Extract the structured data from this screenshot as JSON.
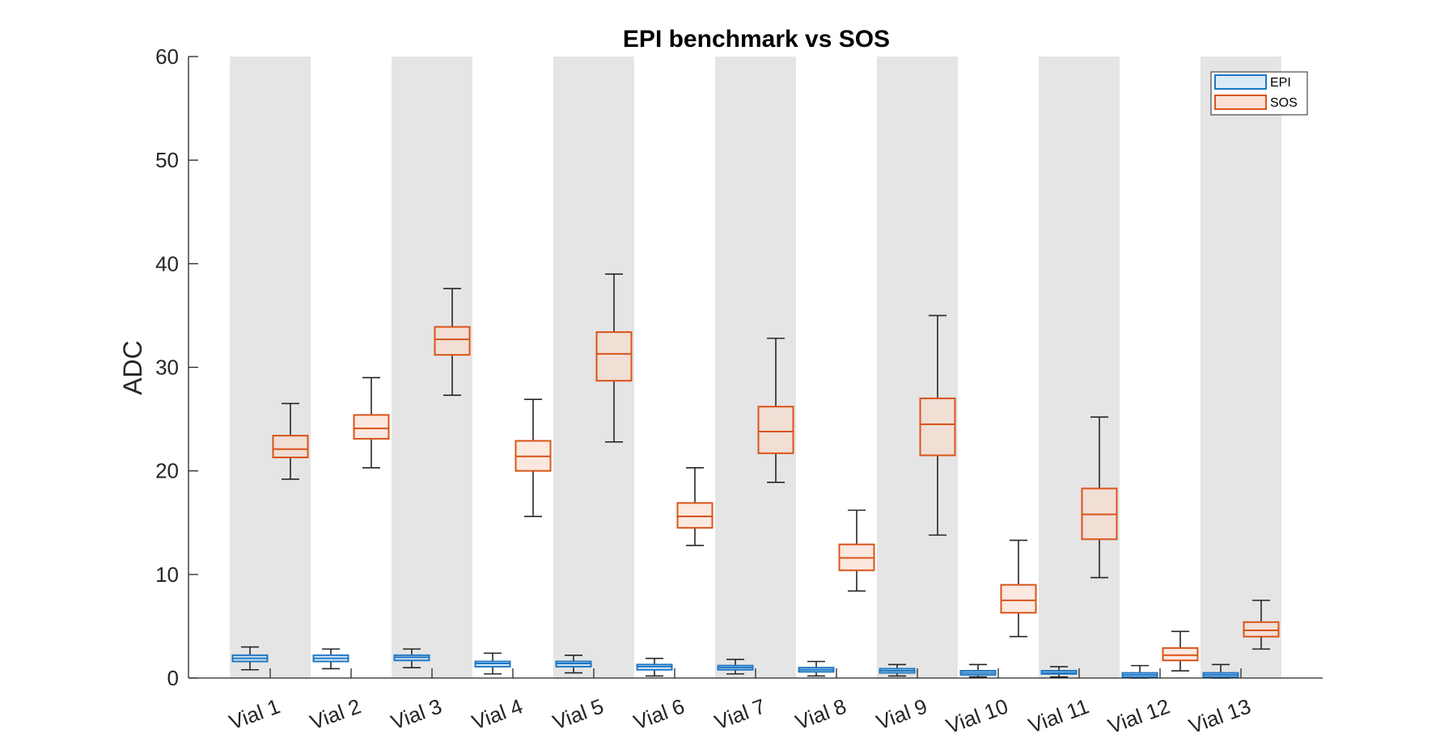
{
  "chart_data": {
    "type": "box",
    "title": "EPI benchmark vs SOS",
    "xlabel": "",
    "ylabel": "ADC",
    "ylim": [
      0,
      60
    ],
    "yticks": [
      0,
      10,
      20,
      30,
      40,
      50,
      60
    ],
    "grid": false,
    "legend_position": "top-right",
    "categories": [
      "Vial 1",
      "Vial 2",
      "Vial 3",
      "Vial 4",
      "Vial 5",
      "Vial 6",
      "Vial 7",
      "Vial 8",
      "Vial 9",
      "Vial 10",
      "Vial 11",
      "Vial 12",
      "Vial 13"
    ],
    "shaded_categories": [
      "Vial 1",
      "Vial 3",
      "Vial 5",
      "Vial 7",
      "Vial 9",
      "Vial 11",
      "Vial 13"
    ],
    "series": [
      {
        "name": "EPI",
        "color": "#1f77c4",
        "fill": "#cfe6f7",
        "boxes": [
          {
            "whisker_low": 0.8,
            "q1": 1.6,
            "median": 1.9,
            "q3": 2.2,
            "whisker_high": 3.0
          },
          {
            "whisker_low": 0.9,
            "q1": 1.6,
            "median": 1.9,
            "q3": 2.2,
            "whisker_high": 2.8
          },
          {
            "whisker_low": 1.0,
            "q1": 1.7,
            "median": 2.0,
            "q3": 2.2,
            "whisker_high": 2.8
          },
          {
            "whisker_low": 0.4,
            "q1": 1.1,
            "median": 1.4,
            "q3": 1.6,
            "whisker_high": 2.4
          },
          {
            "whisker_low": 0.5,
            "q1": 1.1,
            "median": 1.4,
            "q3": 1.6,
            "whisker_high": 2.2
          },
          {
            "whisker_low": 0.2,
            "q1": 0.8,
            "median": 1.1,
            "q3": 1.3,
            "whisker_high": 1.9
          },
          {
            "whisker_low": 0.4,
            "q1": 0.8,
            "median": 1.0,
            "q3": 1.2,
            "whisker_high": 1.8
          },
          {
            "whisker_low": 0.2,
            "q1": 0.6,
            "median": 0.8,
            "q3": 1.0,
            "whisker_high": 1.6
          },
          {
            "whisker_low": 0.2,
            "q1": 0.5,
            "median": 0.7,
            "q3": 0.9,
            "whisker_high": 1.3
          },
          {
            "whisker_low": 0.1,
            "q1": 0.3,
            "median": 0.5,
            "q3": 0.7,
            "whisker_high": 1.3
          },
          {
            "whisker_low": 0.1,
            "q1": 0.4,
            "median": 0.5,
            "q3": 0.7,
            "whisker_high": 1.1
          },
          {
            "whisker_low": 0.0,
            "q1": 0.1,
            "median": 0.3,
            "q3": 0.5,
            "whisker_high": 1.2
          },
          {
            "whisker_low": 0.0,
            "q1": 0.1,
            "median": 0.3,
            "q3": 0.5,
            "whisker_high": 1.3
          }
        ]
      },
      {
        "name": "SOS",
        "color": "#d9541a",
        "fill": "#f9d9c9",
        "boxes": [
          {
            "whisker_low": 19.2,
            "q1": 21.3,
            "median": 22.1,
            "q3": 23.4,
            "whisker_high": 26.5
          },
          {
            "whisker_low": 20.3,
            "q1": 23.1,
            "median": 24.1,
            "q3": 25.4,
            "whisker_high": 29.0
          },
          {
            "whisker_low": 27.3,
            "q1": 31.2,
            "median": 32.7,
            "q3": 33.9,
            "whisker_high": 37.6
          },
          {
            "whisker_low": 15.6,
            "q1": 20.0,
            "median": 21.4,
            "q3": 22.9,
            "whisker_high": 26.9
          },
          {
            "whisker_low": 22.8,
            "q1": 28.7,
            "median": 31.3,
            "q3": 33.4,
            "whisker_high": 39.0
          },
          {
            "whisker_low": 12.8,
            "q1": 14.5,
            "median": 15.6,
            "q3": 16.9,
            "whisker_high": 20.3
          },
          {
            "whisker_low": 18.9,
            "q1": 21.7,
            "median": 23.8,
            "q3": 26.2,
            "whisker_high": 32.8
          },
          {
            "whisker_low": 8.4,
            "q1": 10.4,
            "median": 11.6,
            "q3": 12.9,
            "whisker_high": 16.2
          },
          {
            "whisker_low": 13.8,
            "q1": 21.5,
            "median": 24.5,
            "q3": 27.0,
            "whisker_high": 35.0
          },
          {
            "whisker_low": 4.0,
            "q1": 6.3,
            "median": 7.5,
            "q3": 9.0,
            "whisker_high": 13.3
          },
          {
            "whisker_low": 9.7,
            "q1": 13.4,
            "median": 15.8,
            "q3": 18.3,
            "whisker_high": 25.2
          },
          {
            "whisker_low": 0.7,
            "q1": 1.7,
            "median": 2.2,
            "q3": 2.9,
            "whisker_high": 4.5
          },
          {
            "whisker_low": 2.8,
            "q1": 4.0,
            "median": 4.6,
            "q3": 5.4,
            "whisker_high": 7.5
          }
        ]
      }
    ]
  }
}
